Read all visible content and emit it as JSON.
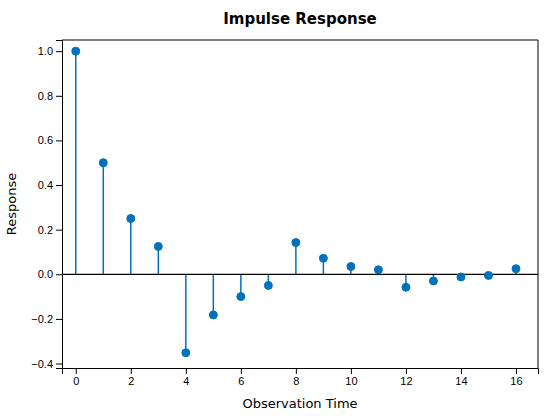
{
  "chart_data": {
    "type": "stem",
    "title": "Impulse Response",
    "x_label": "Observation Time",
    "y_label": "Response",
    "x": [
      0,
      1,
      2,
      3,
      4,
      5,
      6,
      7,
      8,
      9,
      10,
      11,
      12,
      13,
      14,
      15,
      16
    ],
    "values": [
      1.0,
      0.5,
      0.25,
      0.125,
      -0.352,
      -0.182,
      -0.1,
      -0.05,
      0.142,
      0.072,
      0.035,
      0.02,
      -0.058,
      -0.03,
      -0.012,
      -0.005,
      0.025
    ],
    "color": "#0072BD",
    "marker": "circle",
    "xlim": [
      -0.5,
      16.8
    ],
    "ylim": [
      -0.42,
      1.05
    ],
    "xticks": [
      0,
      2,
      4,
      6,
      8,
      10,
      12,
      14,
      16
    ],
    "yticks": [
      {
        "value": -0.4,
        "label": "−0.4"
      },
      {
        "value": -0.2,
        "label": "−0.2"
      },
      {
        "value": 0,
        "label": "0.0"
      },
      0.2,
      0.4,
      0.6,
      0.8,
      {
        "value": 1.0,
        "label": "1.0"
      }
    ],
    "grid": false
  }
}
